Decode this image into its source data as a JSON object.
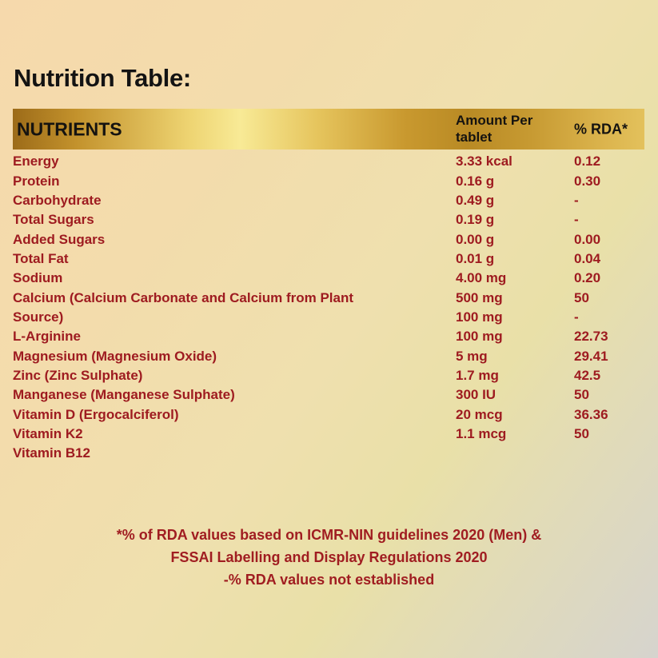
{
  "page": {
    "title": "Nutrition Table:"
  },
  "table": {
    "headers": {
      "nutrients": "NUTRIENTS",
      "amount": "Amount Per tablet",
      "rda": "% RDA*"
    },
    "rows": [
      {
        "label": "Energy",
        "amount": "3.33 kcal",
        "rda": "0.12"
      },
      {
        "label": "Protein",
        "amount": "0.16 g",
        "rda": "0.30"
      },
      {
        "label": "Carbohydrate",
        "amount": "0.49 g",
        "rda": "-"
      },
      {
        "label": "Total Sugars",
        "amount": "0.19 g",
        "rda": "-"
      },
      {
        "label": "Added Sugars",
        "amount": "0.00 g",
        "rda": "0.00"
      },
      {
        "label": "Total Fat",
        "amount": "0.01 g",
        "rda": "0.04"
      },
      {
        "label": "Sodium",
        "amount": "4.00 mg",
        "rda": "0.20"
      },
      {
        "label": "Calcium (Calcium Carbonate and Calcium from Plant",
        "amount": "500 mg",
        "rda": "50"
      },
      {
        "label": "Source)",
        "amount": "100 mg",
        "rda": "-"
      },
      {
        "label": "L-Arginine",
        "amount": "100 mg",
        "rda": "22.73"
      },
      {
        "label": "Magnesium (Magnesium Oxide)",
        "amount": "5 mg",
        "rda": "29.41"
      },
      {
        "label": "Zinc (Zinc Sulphate)",
        "amount": "1.7 mg",
        "rda": "42.5"
      },
      {
        "label": "Manganese (Manganese Sulphate)",
        "amount": "300 IU",
        "rda": "50"
      },
      {
        "label": "Vitamin D (Ergocalciferol)",
        "amount": "20 mcg",
        "rda": "36.36"
      },
      {
        "label": "Vitamin K2",
        "amount": "1.1 mcg",
        "rda": "50"
      },
      {
        "label": "Vitamin B12",
        "amount": "",
        "rda": ""
      }
    ]
  },
  "footnotes": {
    "lines": [
      "*% of RDA values based on ICMR-NIN guidelines 2020 (Men) &",
      "FSSAI Labelling and Display Regulations 2020",
      "-% RDA values not established"
    ]
  },
  "colors": {
    "text_red": "#9e1b20",
    "text_black": "#131313",
    "gold_dark": "#9c6b19",
    "gold_light": "#f8ea96",
    "bg_top_left": "#f6d9ac",
    "bg_bottom_right": "#d6d4ce"
  }
}
